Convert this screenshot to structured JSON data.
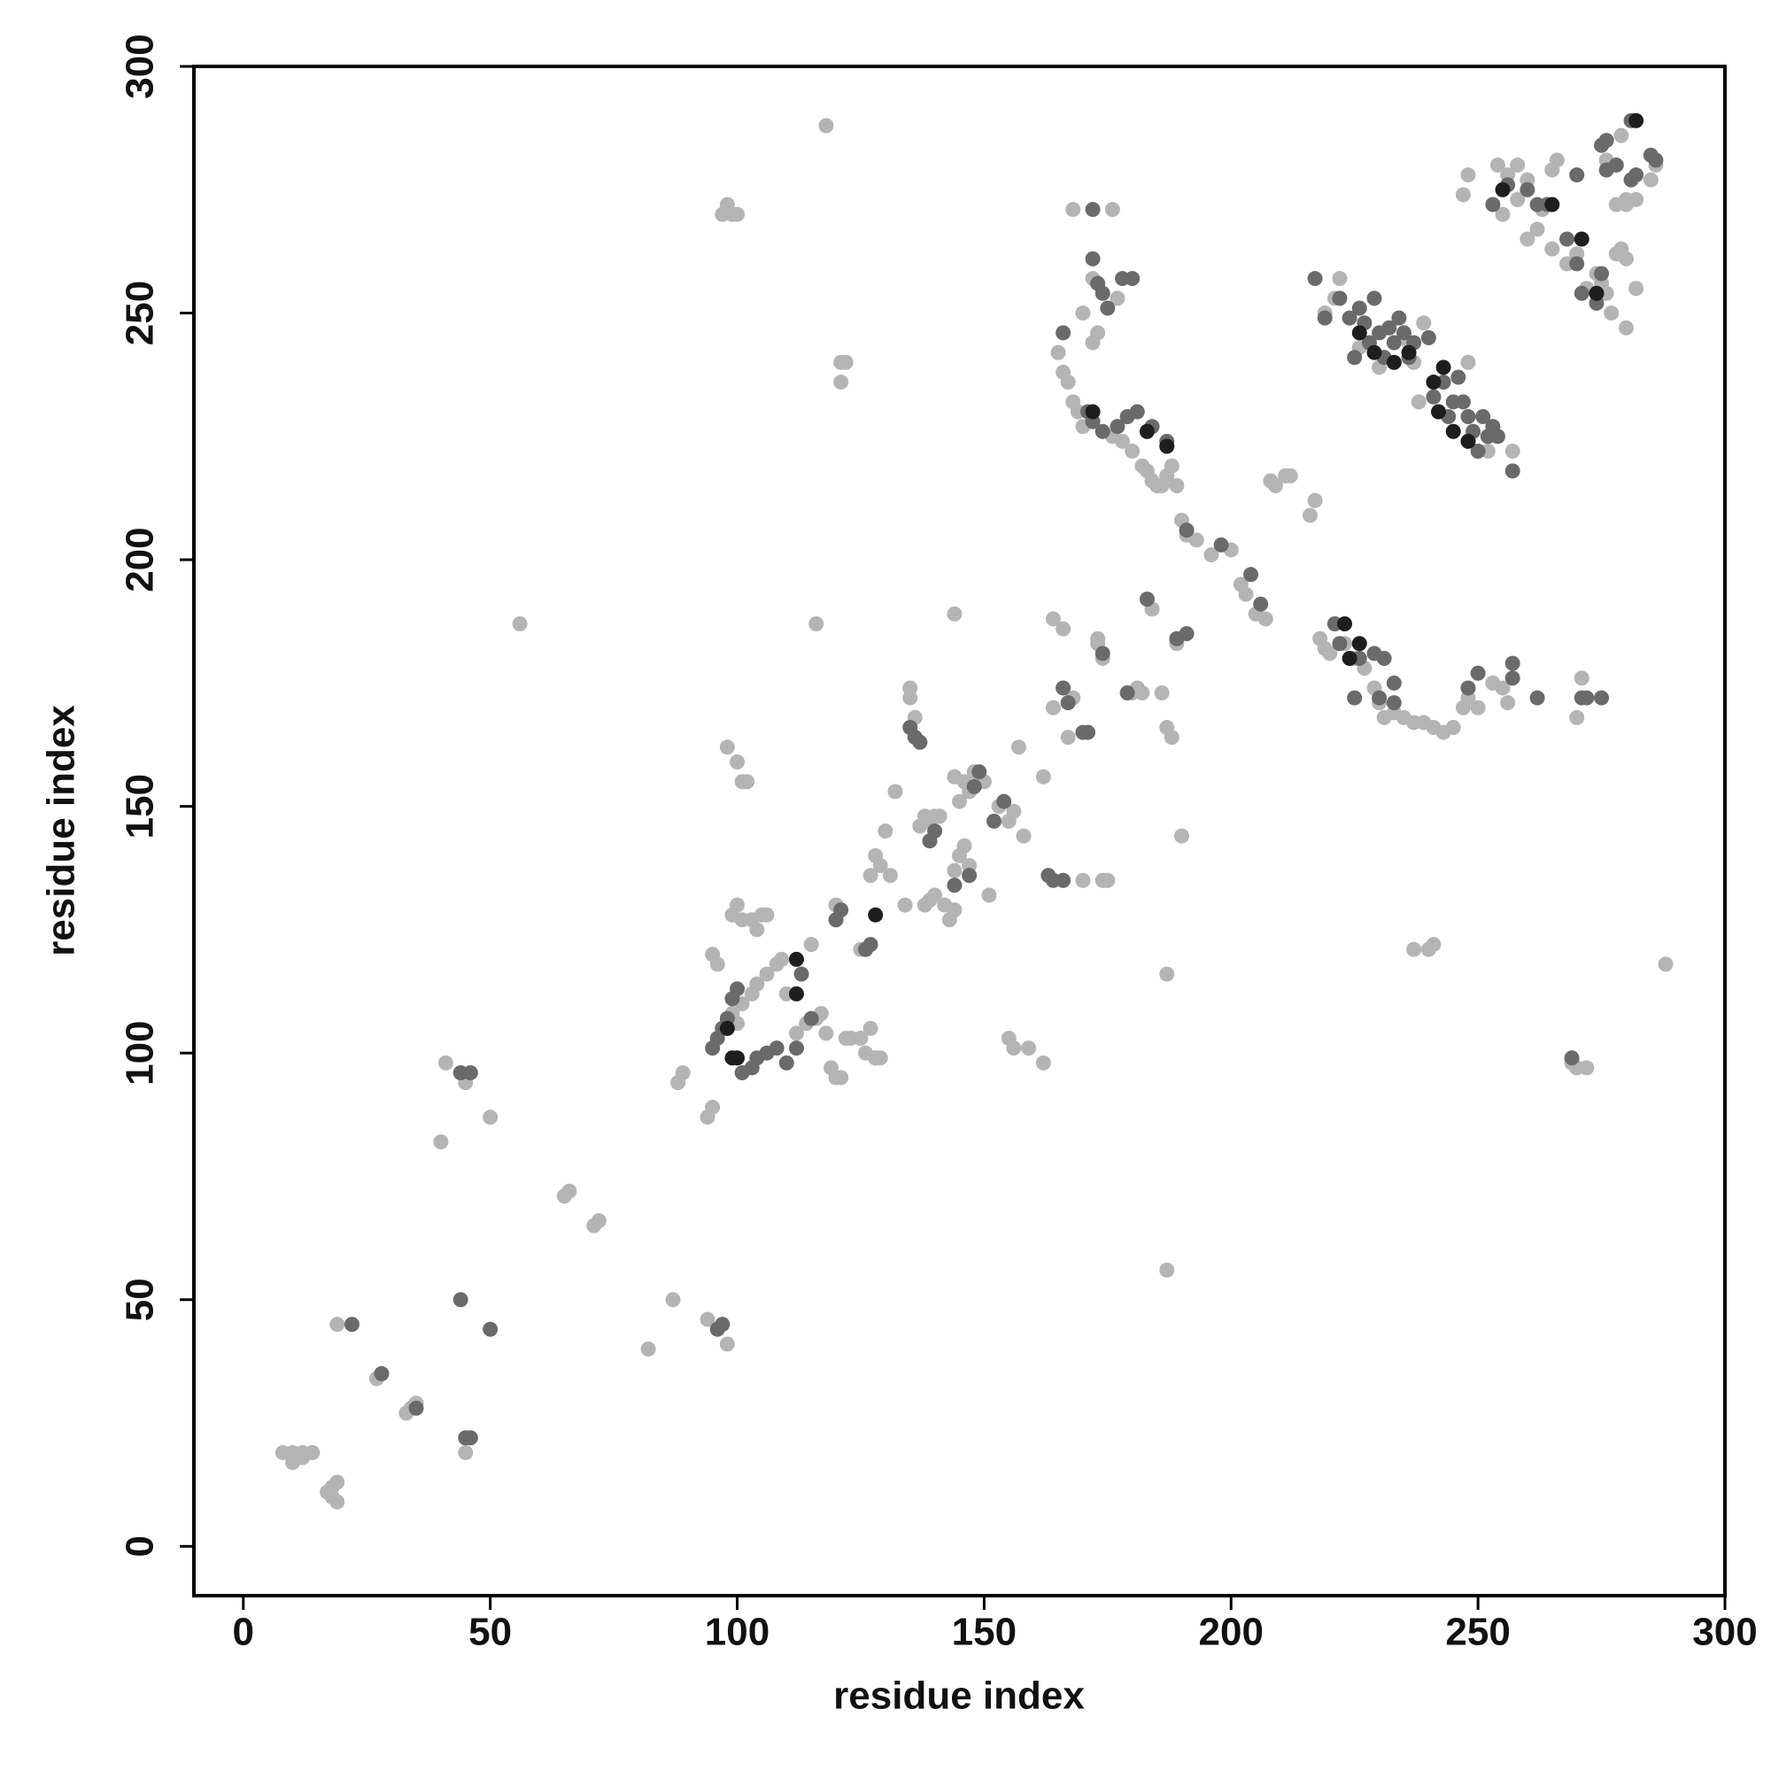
{
  "chart_data": {
    "type": "scatter",
    "x_label": "residue index",
    "y_label": "residue index",
    "xlim": [
      -10,
      300
    ],
    "ylim": [
      -10,
      300
    ],
    "xticks": [
      0,
      50,
      100,
      150,
      200,
      250,
      300
    ],
    "yticks": [
      0,
      50,
      100,
      150,
      200,
      250,
      300
    ],
    "grid": false,
    "series": [
      {
        "color": "#b4b4b4",
        "x": [
          8,
          10,
          12,
          14,
          10,
          12,
          17,
          18,
          19,
          19,
          18,
          19,
          27,
          28,
          33,
          34,
          35,
          45,
          40,
          41,
          45,
          50,
          56,
          65,
          66,
          71,
          72,
          82,
          87,
          88,
          89,
          94,
          95,
          98,
          94,
          98,
          100,
          101,
          102,
          97,
          98,
          99,
          100,
          118,
          121,
          121,
          122,
          116,
          95,
          96,
          99,
          100,
          101,
          103,
          104,
          105,
          106,
          99,
          100,
          101,
          103,
          104,
          106,
          108,
          109,
          110,
          112,
          114,
          116,
          117,
          118,
          119,
          120,
          121,
          122,
          123,
          125,
          126,
          127,
          128,
          129,
          115,
          120,
          125,
          127,
          128,
          129,
          130,
          131,
          132,
          135,
          135,
          136,
          137,
          138,
          139,
          140,
          141,
          138,
          139,
          140,
          142,
          143,
          144,
          144,
          145,
          146,
          147,
          144,
          145,
          146,
          147,
          148,
          150,
          153,
          155,
          156,
          158,
          157,
          151,
          155,
          156,
          159,
          162,
          162,
          164,
          164,
          166,
          168,
          167,
          174,
          175,
          170,
          168,
          165,
          166,
          167,
          168,
          169,
          170,
          172,
          173,
          170,
          172,
          176,
          177,
          176,
          178,
          180,
          182,
          183,
          184,
          185,
          186,
          187,
          188,
          189,
          190,
          191,
          193,
          196,
          200,
          202,
          203,
          205,
          207,
          208,
          209,
          211,
          212,
          216,
          217,
          218,
          219,
          220,
          221,
          223,
          225,
          227,
          229,
          230,
          231,
          233,
          235,
          237,
          239,
          241,
          243,
          245,
          247,
          248,
          250,
          253,
          255,
          256,
          219,
          221,
          222,
          226,
          230,
          236,
          237,
          238,
          239,
          242,
          248,
          252,
          257,
          173,
          174,
          173,
          180,
          181,
          182,
          184,
          186,
          187,
          188,
          189,
          190,
          187,
          187,
          237,
          240,
          241,
          288,
          269,
          270,
          272,
          144,
          134,
          128,
          254,
          256,
          258,
          255,
          258,
          260,
          262,
          263,
          260,
          265,
          266,
          265,
          268,
          270,
          272,
          274,
          275,
          278,
          279,
          280,
          276,
          277,
          280,
          282,
          247,
          248,
          270,
          271,
          280,
          282,
          285,
          286,
          279,
          276,
          278,
          280
        ],
        "values": [
          19,
          19,
          19,
          19,
          17,
          18,
          11,
          12,
          13,
          9,
          10,
          45,
          34,
          35,
          27,
          28,
          29,
          19,
          82,
          98,
          94,
          87,
          187,
          71,
          72,
          65,
          66,
          40,
          50,
          94,
          96,
          87,
          89,
          41,
          46,
          162,
          159,
          155,
          155,
          270,
          272,
          270,
          270,
          288,
          236,
          240,
          240,
          187,
          120,
          118,
          128,
          130,
          127,
          127,
          125,
          128,
          128,
          108,
          106,
          110,
          112,
          114,
          116,
          118,
          119,
          112,
          104,
          106,
          107,
          108,
          104,
          97,
          95,
          95,
          103,
          103,
          103,
          100,
          105,
          99,
          99,
          122,
          130,
          121,
          136,
          140,
          138,
          145,
          136,
          153,
          172,
          174,
          168,
          146,
          148,
          147,
          148,
          148,
          130,
          131,
          132,
          130,
          127,
          129,
          137,
          140,
          142,
          138,
          156,
          151,
          155,
          153,
          157,
          155,
          150,
          147,
          149,
          144,
          162,
          132,
          103,
          101,
          101,
          98,
          156,
          188,
          170,
          186,
          172,
          164,
          135,
          135,
          135,
          271,
          242,
          238,
          236,
          232,
          230,
          227,
          244,
          246,
          250,
          257,
          271,
          253,
          225,
          224,
          222,
          219,
          218,
          216,
          215,
          215,
          217,
          219,
          215,
          208,
          205,
          204,
          201,
          202,
          195,
          193,
          189,
          188,
          216,
          215,
          217,
          217,
          209,
          212,
          184,
          182,
          181,
          187,
          183,
          180,
          178,
          174,
          171,
          168,
          169,
          168,
          167,
          167,
          166,
          165,
          166,
          170,
          172,
          170,
          175,
          174,
          171,
          250,
          253,
          257,
          243,
          239,
          244,
          240,
          232,
          248,
          230,
          240,
          222,
          222,
          183,
          180,
          184,
          173,
          174,
          173,
          190,
          173,
          166,
          164,
          183,
          144,
          116,
          56,
          121,
          121,
          122,
          118,
          98,
          97,
          97,
          189,
          130,
          99,
          280,
          278,
          280,
          270,
          273,
          265,
          267,
          271,
          277,
          279,
          281,
          263,
          260,
          262,
          255,
          258,
          256,
          262,
          263,
          261,
          254,
          250,
          247,
          255,
          274,
          278,
          168,
          176,
          273,
          273,
          277,
          280,
          286,
          281,
          272,
          272
        ]
      },
      {
        "color": "#6a6a6a",
        "x": [
          44,
          46,
          45,
          46,
          22,
          28,
          35,
          44,
          50,
          96,
          97,
          95,
          96,
          97,
          98,
          99,
          100,
          101,
          103,
          104,
          106,
          108,
          110,
          112,
          113,
          115,
          120,
          121,
          126,
          127,
          135,
          136,
          137,
          139,
          140,
          144,
          147,
          148,
          149,
          152,
          154,
          163,
          164,
          166,
          166,
          167,
          170,
          171,
          172,
          172,
          173,
          174,
          175,
          174,
          178,
          180,
          166,
          171,
          172,
          174,
          177,
          179,
          181,
          184,
          187,
          191,
          198,
          204,
          206,
          183,
          189,
          191,
          179,
          221,
          222,
          226,
          229,
          231,
          233,
          225,
          230,
          233,
          248,
          250,
          257,
          257,
          262,
          271,
          275,
          217,
          219,
          222,
          224,
          225,
          226,
          227,
          228,
          229,
          230,
          231,
          232,
          233,
          234,
          235,
          236,
          237,
          240,
          241,
          243,
          244,
          245,
          246,
          247,
          248,
          249,
          250,
          251,
          252,
          253,
          254,
          257,
          253,
          256,
          260,
          262,
          264,
          268,
          270,
          271,
          274,
          275,
          275,
          276,
          278,
          281,
          282,
          285,
          286,
          276,
          281,
          270,
          269,
          272
        ],
        "values": [
          96,
          96,
          22,
          22,
          45,
          35,
          28,
          50,
          44,
          44,
          45,
          101,
          103,
          105,
          107,
          111,
          113,
          96,
          97,
          99,
          100,
          101,
          98,
          101,
          116,
          107,
          127,
          129,
          121,
          122,
          166,
          164,
          163,
          143,
          145,
          134,
          136,
          154,
          157,
          147,
          151,
          136,
          135,
          135,
          174,
          171,
          165,
          165,
          271,
          261,
          256,
          254,
          251,
          181,
          257,
          257,
          246,
          230,
          228,
          226,
          227,
          229,
          230,
          227,
          224,
          206,
          203,
          197,
          191,
          192,
          184,
          185,
          173,
          187,
          183,
          180,
          181,
          180,
          175,
          172,
          172,
          171,
          174,
          177,
          179,
          176,
          172,
          172,
          172,
          257,
          249,
          253,
          249,
          241,
          251,
          248,
          244,
          253,
          246,
          241,
          247,
          244,
          249,
          246,
          241,
          244,
          245,
          233,
          236,
          229,
          232,
          237,
          232,
          229,
          226,
          222,
          229,
          225,
          227,
          225,
          218,
          272,
          276,
          275,
          272,
          272,
          265,
          260,
          254,
          252,
          258,
          284,
          285,
          280,
          277,
          278,
          282,
          281,
          279,
          289,
          278,
          99,
          172
        ]
      },
      {
        "color": "#1e1e1e",
        "x": [
          98,
          100,
          112,
          112,
          128,
          172,
          183,
          187,
          223,
          226,
          226,
          229,
          233,
          236,
          241,
          242,
          243,
          245,
          248,
          255,
          265,
          271,
          274,
          282,
          224,
          99
        ],
        "values": [
          105,
          99,
          112,
          119,
          128,
          230,
          226,
          223,
          187,
          183,
          246,
          242,
          240,
          242,
          236,
          230,
          239,
          226,
          224,
          275,
          272,
          265,
          254,
          289,
          180,
          99
        ]
      }
    ]
  }
}
